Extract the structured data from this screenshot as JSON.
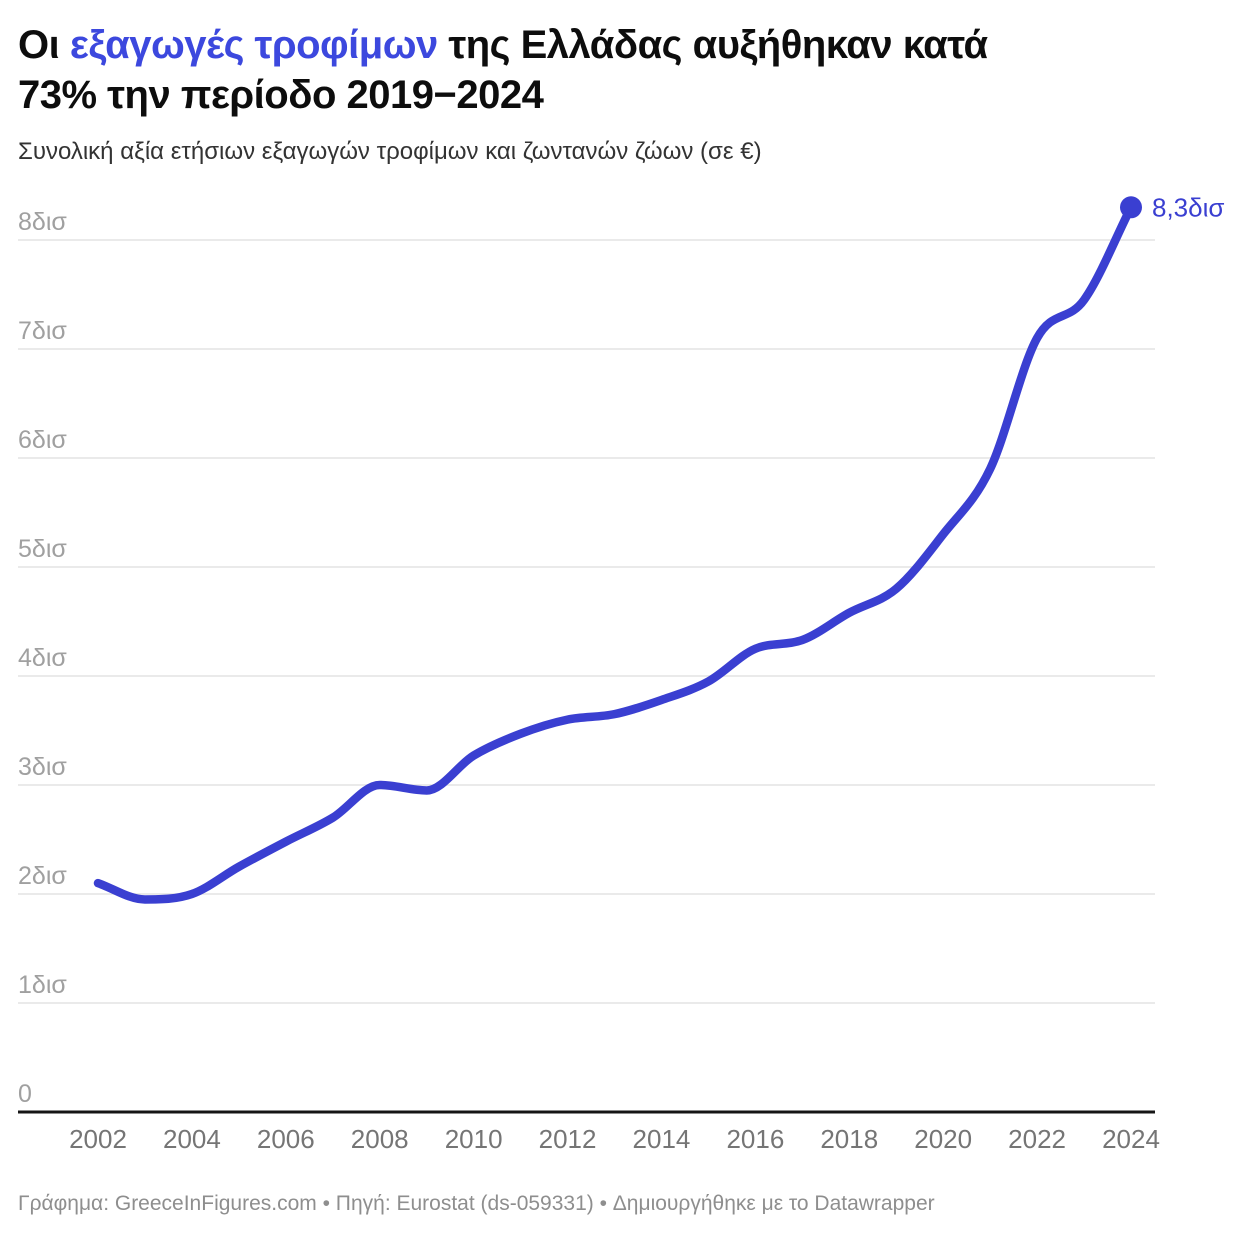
{
  "header": {
    "title_prefix": "Οι ",
    "title_highlight": "εξαγωγές τροφίμων",
    "title_suffix": " της Ελλάδας αυξήθηκαν κατά\n73% την περίοδο 2019−2024",
    "subtitle": "Συνολική αξία ετήσιων εξαγωγών τροφίμων και ζωντανών ζώων (σε €)"
  },
  "chart_data": {
    "type": "line",
    "title": "Οι εξαγωγές τροφίμων της Ελλάδας αυξήθηκαν κατά 73% την περίοδο 2019−2024",
    "subtitle": "Συνολική αξία ετήσιων εξαγωγών τροφίμων και ζωντανών ζώων (σε €)",
    "unit": "δισ €",
    "curve": "monotone",
    "grid": true,
    "legend": "none",
    "x": [
      2002,
      2003,
      2004,
      2005,
      2006,
      2007,
      2008,
      2009,
      2010,
      2011,
      2012,
      2013,
      2014,
      2015,
      2016,
      2017,
      2018,
      2019,
      2020,
      2021,
      2022,
      2023,
      2024
    ],
    "values": [
      2.1,
      1.95,
      2.0,
      2.25,
      2.48,
      2.7,
      3.0,
      2.95,
      3.27,
      3.47,
      3.6,
      3.65,
      3.78,
      3.95,
      4.25,
      4.33,
      4.58,
      4.8,
      5.3,
      5.9,
      7.1,
      7.45,
      8.3
    ],
    "end_label": "8,3δισ",
    "xlim": [
      2002,
      2024
    ],
    "ylim": [
      0,
      8.6
    ],
    "ytick_values": [
      0,
      1,
      2,
      3,
      4,
      5,
      6,
      7,
      8
    ],
    "ytick_labels": [
      "0",
      "1δισ",
      "2δισ",
      "3δισ",
      "4δισ",
      "5δισ",
      "6δισ",
      "7δισ",
      "8δισ"
    ],
    "xtick_values": [
      2002,
      2004,
      2006,
      2008,
      2010,
      2012,
      2014,
      2016,
      2018,
      2020,
      2022,
      2024
    ],
    "xtick_labels": [
      "2002",
      "2004",
      "2006",
      "2008",
      "2010",
      "2012",
      "2014",
      "2016",
      "2018",
      "2020",
      "2022",
      "2024"
    ]
  },
  "colors": {
    "line": "#3a3fd1",
    "title_highlight": "#3c48de",
    "grid": "#e4e4e4",
    "axis": "#161616",
    "y_tick": "#a0a0a0",
    "x_tick": "#757575",
    "footer": "#8e8e8e"
  },
  "footer": {
    "text": "Γράφημα: GreeceInFigures.com • Πηγή: Eurostat (ds-059331) • Δημιουργήθηκε με το Datawrapper"
  }
}
